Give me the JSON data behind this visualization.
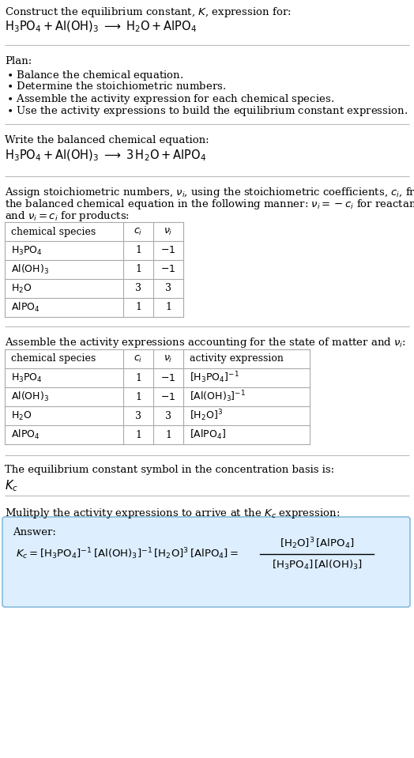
{
  "bg_color": "#ffffff",
  "text_color": "#000000",
  "table_border_color": "#aaaaaa",
  "answer_box_bg": "#ddeeff",
  "answer_box_border": "#88bbdd",
  "fs": 9.5,
  "fs_small": 9.0,
  "fs_eq": 10.5
}
